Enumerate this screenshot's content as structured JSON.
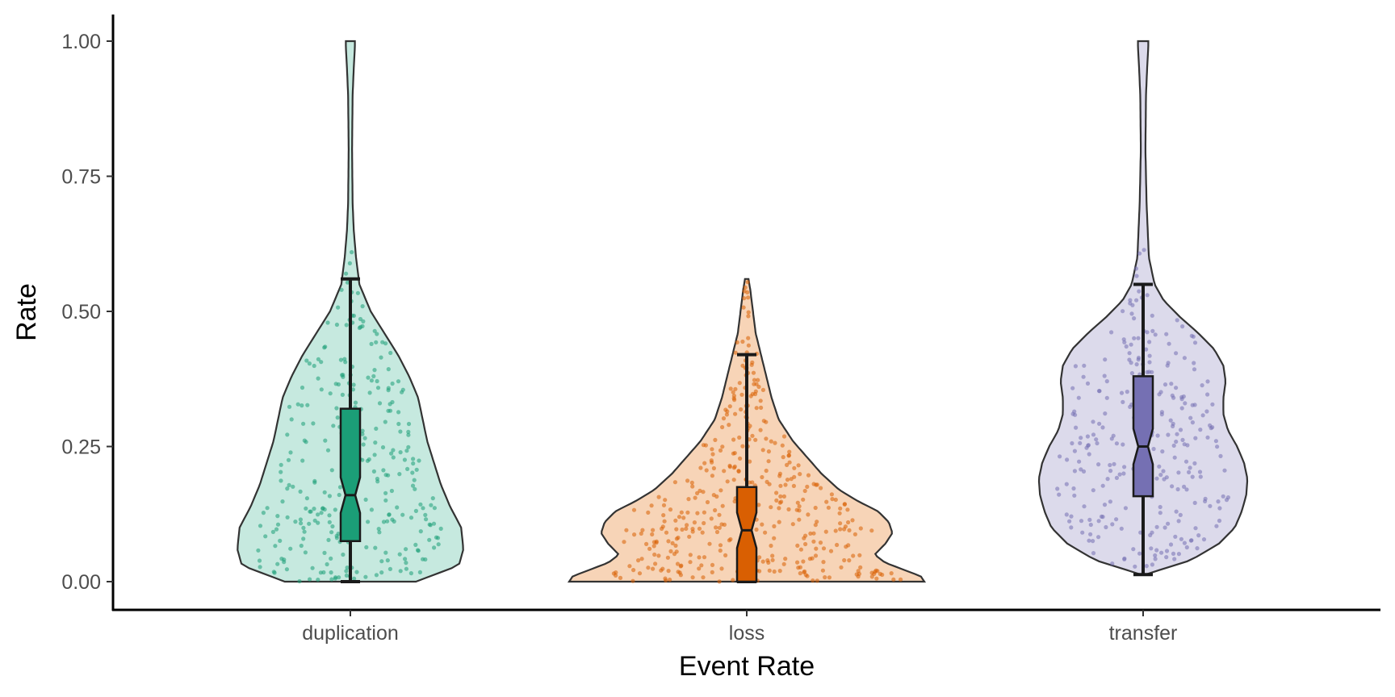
{
  "chart_data": {
    "type": "violin",
    "xlabel": "Event Rate",
    "ylabel": "Rate",
    "ylim": [
      -0.05,
      1.03
    ],
    "yticks": [
      0,
      0.25,
      0.5,
      0.75,
      1.0
    ],
    "ytick_labels": [
      "0.00",
      "0.25",
      "0.50",
      "0.75",
      "1.00"
    ],
    "categories": [
      "duplication",
      "loss",
      "transfer"
    ],
    "grid": false,
    "legend": "none",
    "series": [
      {
        "category": "duplication",
        "fill": "#c6e9df",
        "box_color": "#1b9e77",
        "point_color": "#1b9e77",
        "min": 0.0,
        "q1": 0.075,
        "median": 0.16,
        "q3": 0.32,
        "whisker_low": 0.0,
        "whisker_high": 0.56,
        "max": 1.0,
        "n_points": 300,
        "density": [
          [
            0,
            0.58
          ],
          [
            0.03,
            0.96
          ],
          [
            0.06,
            1.0
          ],
          [
            0.1,
            0.98
          ],
          [
            0.14,
            0.88
          ],
          [
            0.18,
            0.8
          ],
          [
            0.22,
            0.74
          ],
          [
            0.26,
            0.68
          ],
          [
            0.3,
            0.64
          ],
          [
            0.34,
            0.6
          ],
          [
            0.38,
            0.52
          ],
          [
            0.42,
            0.42
          ],
          [
            0.46,
            0.3
          ],
          [
            0.5,
            0.18
          ],
          [
            0.55,
            0.08
          ],
          [
            0.6,
            0.05
          ],
          [
            0.65,
            0.03
          ],
          [
            0.7,
            0.02
          ],
          [
            0.8,
            0.015
          ],
          [
            0.9,
            0.02
          ],
          [
            0.95,
            0.03
          ],
          [
            0.99,
            0.04
          ],
          [
            1.0,
            0.04
          ]
        ]
      },
      {
        "category": "loss",
        "fill": "#f7d4b7",
        "box_color": "#d95f02",
        "point_color": "#d95f02",
        "min": 0.0,
        "q1": 0.0,
        "median": 0.095,
        "q3": 0.175,
        "whisker_low": 0.0,
        "whisker_high": 0.42,
        "max": 0.56,
        "n_points": 400,
        "density": [
          [
            0,
            1.0
          ],
          [
            0.01,
            0.98
          ],
          [
            0.02,
            0.9
          ],
          [
            0.035,
            0.78
          ],
          [
            0.05,
            0.72
          ],
          [
            0.07,
            0.78
          ],
          [
            0.09,
            0.82
          ],
          [
            0.11,
            0.8
          ],
          [
            0.13,
            0.74
          ],
          [
            0.15,
            0.62
          ],
          [
            0.17,
            0.52
          ],
          [
            0.2,
            0.42
          ],
          [
            0.23,
            0.34
          ],
          [
            0.26,
            0.26
          ],
          [
            0.3,
            0.18
          ],
          [
            0.34,
            0.14
          ],
          [
            0.38,
            0.11
          ],
          [
            0.42,
            0.08
          ],
          [
            0.46,
            0.05
          ],
          [
            0.5,
            0.035
          ],
          [
            0.54,
            0.02
          ],
          [
            0.56,
            0.01
          ]
        ]
      },
      {
        "category": "transfer",
        "fill": "#dcdaeb",
        "box_color": "#7570b3",
        "point_color": "#7570b3",
        "min": 0.013,
        "q1": 0.158,
        "median": 0.25,
        "q3": 0.38,
        "whisker_low": 0.013,
        "whisker_high": 0.55,
        "max": 1.0,
        "n_points": 280,
        "density": [
          [
            0.013,
            0.02
          ],
          [
            0.02,
            0.12
          ],
          [
            0.04,
            0.42
          ],
          [
            0.07,
            0.66
          ],
          [
            0.1,
            0.8
          ],
          [
            0.13,
            0.86
          ],
          [
            0.16,
            0.9
          ],
          [
            0.19,
            0.91
          ],
          [
            0.22,
            0.88
          ],
          [
            0.25,
            0.82
          ],
          [
            0.28,
            0.74
          ],
          [
            0.31,
            0.7
          ],
          [
            0.34,
            0.7
          ],
          [
            0.37,
            0.72
          ],
          [
            0.4,
            0.7
          ],
          [
            0.43,
            0.62
          ],
          [
            0.46,
            0.48
          ],
          [
            0.49,
            0.32
          ],
          [
            0.52,
            0.18
          ],
          [
            0.55,
            0.1
          ],
          [
            0.6,
            0.05
          ],
          [
            0.7,
            0.03
          ],
          [
            0.8,
            0.02
          ],
          [
            0.9,
            0.025
          ],
          [
            0.95,
            0.035
          ],
          [
            0.99,
            0.045
          ],
          [
            1.0,
            0.045
          ]
        ]
      }
    ]
  }
}
